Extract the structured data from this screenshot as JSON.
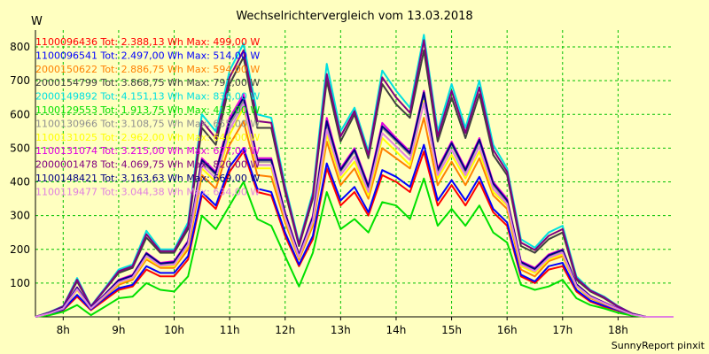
{
  "chart_data": {
    "type": "line",
    "title": "Wechselrichtervergleich vom 13.03.2018",
    "ylabel": "W",
    "xlabel": "",
    "credit": "SunnyReport pinxit",
    "ylim": [
      0,
      850
    ],
    "xlim": [
      7.5,
      19.0
    ],
    "yticks": [
      100,
      200,
      300,
      400,
      500,
      600,
      700,
      800
    ],
    "xticks": [
      8,
      9,
      10,
      11,
      12,
      13,
      14,
      15,
      16,
      17,
      18
    ],
    "xtick_labels": [
      "8h",
      "9h",
      "10h",
      "11h",
      "12h",
      "13h",
      "14h",
      "15h",
      "16h",
      "17h",
      "18h"
    ],
    "grid": true,
    "legend_position": "top-left",
    "x": [
      7.5,
      7.75,
      8.0,
      8.25,
      8.5,
      8.75,
      9.0,
      9.25,
      9.5,
      9.75,
      10.0,
      10.25,
      10.5,
      10.75,
      11.0,
      11.25,
      11.5,
      11.75,
      12.0,
      12.25,
      12.5,
      12.75,
      13.0,
      13.25,
      13.5,
      13.75,
      14.0,
      14.25,
      14.5,
      14.75,
      15.0,
      15.25,
      15.5,
      15.75,
      16.0,
      16.25,
      16.5,
      16.75,
      17.0,
      17.25,
      17.5,
      17.75,
      18.0,
      18.25,
      18.5,
      18.75,
      19.0
    ],
    "series": [
      {
        "name": "1100096436 Tot: 2.388,13 Wh Max: 499,00 W",
        "color": "#ff0000",
        "values": [
          0,
          8,
          20,
          60,
          20,
          50,
          80,
          90,
          140,
          120,
          120,
          170,
          360,
          320,
          430,
          490,
          370,
          360,
          240,
          150,
          230,
          440,
          330,
          370,
          300,
          420,
          400,
          370,
          490,
          330,
          390,
          330,
          400,
          310,
          270,
          120,
          100,
          140,
          150,
          75,
          45,
          30,
          18,
          5,
          0,
          0,
          0
        ]
      },
      {
        "name": "1100096541 Tot: 2.497,00 Wh Max: 514,00 W",
        "color": "#0000ff",
        "values": [
          0,
          8,
          22,
          65,
          22,
          55,
          85,
          95,
          150,
          130,
          130,
          180,
          370,
          330,
          445,
          500,
          380,
          370,
          250,
          155,
          240,
          455,
          345,
          385,
          310,
          435,
          415,
          385,
          510,
          345,
          405,
          345,
          415,
          320,
          280,
          125,
          105,
          150,
          160,
          80,
          48,
          33,
          20,
          6,
          0,
          0,
          0
        ]
      },
      {
        "name": "2000150622 Tot: 2.886,75 Wh Max: 594,00 W",
        "color": "#ff8000",
        "values": [
          0,
          10,
          25,
          80,
          25,
          60,
          95,
          110,
          170,
          145,
          145,
          200,
          420,
          380,
          510,
          580,
          420,
          415,
          280,
          170,
          270,
          520,
          390,
          440,
          350,
          500,
          470,
          440,
          590,
          390,
          460,
          390,
          470,
          360,
          320,
          140,
          120,
          165,
          180,
          90,
          55,
          38,
          22,
          7,
          0,
          0,
          0
        ]
      },
      {
        "name": "2000154799 Tot: 3.868,75 Wh Max: 791,00 W",
        "color": "#404040",
        "values": [
          0,
          13,
          30,
          105,
          30,
          80,
          130,
          145,
          235,
          190,
          190,
          260,
          560,
          510,
          690,
          770,
          560,
          560,
          370,
          210,
          350,
          700,
          520,
          600,
          470,
          690,
          630,
          590,
          790,
          520,
          650,
          530,
          660,
          480,
          420,
          210,
          190,
          230,
          250,
          110,
          75,
          55,
          30,
          10,
          0,
          0,
          0
        ]
      },
      {
        "name": "2000149892 Tot: 4.151,13 Wh Max: 836,00 W",
        "color": "#00e0e0",
        "values": [
          0,
          14,
          32,
          115,
          32,
          85,
          140,
          155,
          255,
          200,
          200,
          280,
          600,
          550,
          730,
          810,
          600,
          590,
          390,
          220,
          370,
          750,
          550,
          620,
          490,
          730,
          670,
          620,
          836,
          550,
          690,
          560,
          700,
          510,
          440,
          230,
          205,
          250,
          270,
          120,
          80,
          60,
          32,
          10,
          0,
          0,
          0
        ]
      },
      {
        "name": "1100129553 Tot: 1.913,75 Wh Max: 413,00 W",
        "color": "#00e000",
        "values": [
          0,
          5,
          15,
          35,
          5,
          30,
          55,
          60,
          100,
          80,
          75,
          120,
          300,
          260,
          330,
          400,
          290,
          270,
          180,
          90,
          190,
          370,
          260,
          290,
          250,
          340,
          330,
          290,
          410,
          270,
          320,
          270,
          330,
          250,
          220,
          95,
          80,
          90,
          110,
          55,
          35,
          25,
          12,
          4,
          0,
          0,
          0
        ]
      },
      {
        "name": "1100130966 Tot: 3.108,75 Wh Max: 655,00 W",
        "color": "#909090",
        "values": [
          0,
          11,
          26,
          85,
          26,
          65,
          105,
          120,
          185,
          155,
          160,
          220,
          460,
          420,
          570,
          640,
          460,
          460,
          300,
          180,
          290,
          570,
          430,
          490,
          380,
          560,
          520,
          480,
          650,
          430,
          510,
          430,
          520,
          390,
          340,
          160,
          140,
          180,
          195,
          95,
          60,
          42,
          24,
          8,
          0,
          0,
          0
        ]
      },
      {
        "name": "1100131025 Tot: 2.962,00 Wh Max: 646,00 W",
        "color": "#ffff00",
        "values": [
          0,
          10,
          25,
          80,
          25,
          62,
          100,
          115,
          175,
          150,
          150,
          210,
          440,
          400,
          540,
          620,
          440,
          440,
          290,
          175,
          280,
          540,
          410,
          460,
          360,
          530,
          490,
          450,
          640,
          410,
          480,
          410,
          490,
          370,
          330,
          150,
          130,
          170,
          185,
          90,
          58,
          40,
          23,
          7,
          0,
          0,
          0
        ]
      },
      {
        "name": "1100131074 Tot: 3.215,00 Wh Max: 677,00 W",
        "color": "#e000e0",
        "values": [
          0,
          11,
          27,
          88,
          27,
          67,
          110,
          125,
          190,
          160,
          165,
          225,
          470,
          430,
          590,
          660,
          470,
          470,
          310,
          185,
          300,
          590,
          440,
          500,
          390,
          575,
          530,
          490,
          670,
          440,
          520,
          440,
          530,
          400,
          350,
          165,
          145,
          185,
          200,
          97,
          62,
          43,
          25,
          8,
          0,
          0,
          0
        ]
      },
      {
        "name": "2000001478 Tot: 4.069,75 Wh Max: 820,00 W",
        "color": "#800080",
        "values": [
          0,
          13,
          31,
          110,
          31,
          82,
          135,
          150,
          245,
          195,
          195,
          270,
          580,
          530,
          710,
          790,
          580,
          575,
          380,
          215,
          360,
          720,
          535,
          610,
          480,
          710,
          650,
          605,
          820,
          535,
          670,
          545,
          680,
          495,
          430,
          220,
          198,
          240,
          260,
          115,
          78,
          58,
          31,
          10,
          0,
          0,
          0
        ]
      },
      {
        "name": "1100148421 Tot: 3.163,63 Wh Max: 669,00 W",
        "color": "#000080",
        "values": [
          0,
          11,
          27,
          86,
          27,
          66,
          108,
          122,
          188,
          158,
          162,
          222,
          465,
          425,
          580,
          650,
          465,
          465,
          305,
          182,
          295,
          580,
          435,
          495,
          385,
          565,
          525,
          485,
          665,
          435,
          515,
          435,
          525,
          395,
          345,
          162,
          142,
          182,
          198,
          96,
          61,
          42,
          24,
          8,
          0,
          0,
          0
        ]
      },
      {
        "name": "1100119477 Tot: 3.044,38 Wh Max: 634,00 W",
        "color": "#e080e0",
        "values": [
          0,
          10,
          25,
          82,
          25,
          63,
          102,
          117,
          180,
          152,
          155,
          215,
          450,
          410,
          555,
          630,
          450,
          450,
          295,
          177,
          285,
          555,
          420,
          475,
          370,
          545,
          505,
          465,
          634,
          420,
          495,
          420,
          505,
          380,
          335,
          155,
          135,
          175,
          190,
          92,
          59,
          41,
          23,
          7,
          0,
          0,
          0
        ]
      }
    ]
  }
}
